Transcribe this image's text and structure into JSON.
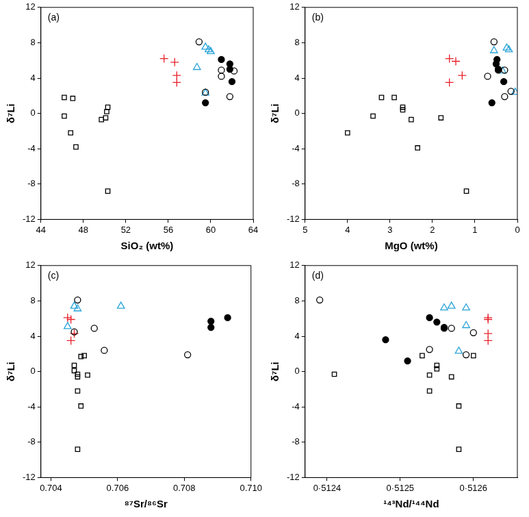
{
  "chart_data": [
    {
      "type": "scatter",
      "annotation": "(a)",
      "x_label": "SiO₂ (wt%)",
      "y_label": "δ⁷Li",
      "xlim": [
        44,
        64
      ],
      "xticks": [
        44,
        48,
        52,
        56,
        60,
        64
      ],
      "ylim": [
        -12,
        12
      ],
      "yticks": [
        -12,
        -8,
        -4,
        0,
        4,
        8,
        12
      ],
      "grid": false,
      "series": [
        {
          "color": "#000000",
          "marker": "open_square",
          "x": [
            46.2,
            46.2,
            46.8,
            47.0,
            47.3,
            50.3,
            50.2,
            50.1,
            49.7,
            50.3
          ],
          "values": [
            1.8,
            -0.3,
            -2.2,
            1.7,
            -3.8,
            0.7,
            0.2,
            -0.5,
            -0.7,
            -8.8
          ]
        },
        {
          "color": "#000000",
          "marker": "filled_circle",
          "x": [
            61.0,
            61.8,
            61.8,
            62.0,
            59.5
          ],
          "values": [
            6.1,
            5.6,
            5.0,
            3.6,
            1.2
          ]
        },
        {
          "color": "#000000",
          "marker": "open_circle",
          "x": [
            58.9,
            61.0,
            61.0,
            62.2,
            61.8,
            59.5
          ],
          "values": [
            8.1,
            4.9,
            4.2,
            4.8,
            1.9,
            2.4
          ]
        },
        {
          "color": "#e8202a",
          "marker": "plus",
          "x": [
            55.6,
            56.6,
            56.8,
            56.8
          ],
          "values": [
            6.2,
            5.8,
            4.3,
            3.5
          ]
        },
        {
          "color": "#29a3d6",
          "marker": "open_triangle",
          "x": [
            59.5,
            59.8,
            60.0,
            58.7,
            59.5
          ],
          "values": [
            7.5,
            7.2,
            7.0,
            5.2,
            2.3
          ]
        }
      ]
    },
    {
      "type": "scatter",
      "annotation": "(b)",
      "x_label": "MgO (wt%)",
      "y_label": "δ⁷Li",
      "xlim": [
        5,
        0
      ],
      "xticks": [
        5,
        4,
        3,
        2,
        1,
        0
      ],
      "ylim": [
        -12,
        12
      ],
      "yticks": [
        -12,
        -8,
        -4,
        0,
        4,
        8,
        12
      ],
      "grid": false,
      "series": [
        {
          "color": "#000000",
          "marker": "open_square",
          "x": [
            3.2,
            2.9,
            3.4,
            2.7,
            2.7,
            2.5,
            1.8,
            4.0,
            2.35,
            1.2
          ],
          "values": [
            1.8,
            1.8,
            -0.3,
            0.7,
            0.4,
            -0.7,
            -0.5,
            -2.2,
            -3.9,
            -8.8
          ]
        },
        {
          "color": "#000000",
          "marker": "filled_circle",
          "x": [
            0.48,
            0.5,
            0.45,
            0.32,
            0.6
          ],
          "values": [
            6.1,
            5.6,
            5.0,
            3.6,
            1.2
          ]
        },
        {
          "color": "#000000",
          "marker": "open_circle",
          "x": [
            0.55,
            0.45,
            0.7,
            0.3,
            0.3,
            0.15
          ],
          "values": [
            8.1,
            4.9,
            4.2,
            4.9,
            1.9,
            2.5
          ]
        },
        {
          "color": "#e8202a",
          "marker": "plus",
          "x": [
            1.6,
            1.45,
            1.3,
            1.6
          ],
          "values": [
            6.2,
            5.9,
            4.3,
            3.5
          ]
        },
        {
          "color": "#29a3d6",
          "marker": "open_triangle",
          "x": [
            0.55,
            0.25,
            0.2,
            0.35,
            0.05
          ],
          "values": [
            7.1,
            7.4,
            7.2,
            4.8,
            2.4
          ]
        }
      ]
    },
    {
      "type": "scatter",
      "annotation": "(c)",
      "x_label": "⁸⁷Sr/⁸⁶Sr",
      "y_label": "δ⁷Li",
      "xlim": [
        0.7037,
        0.71
      ],
      "xticks": [
        {
          "value": 0.704,
          "label": "0.704"
        },
        {
          "value": 0.706,
          "label": "0.706"
        },
        {
          "value": 0.708,
          "label": "0.708"
        },
        {
          "value": 0.71,
          "label": "0.710"
        }
      ],
      "ylim": [
        -12,
        12
      ],
      "yticks": [
        -12,
        -8,
        -4,
        0,
        4,
        8,
        12
      ],
      "grid": false,
      "series": [
        {
          "color": "#000000",
          "marker": "open_square",
          "x": [
            0.7047,
            0.7047,
            0.7048,
            0.7048,
            0.7048,
            0.7049,
            0.7048,
            0.7049,
            0.705,
            0.7051
          ],
          "values": [
            0.7,
            0.1,
            -0.3,
            -0.6,
            -2.2,
            -3.9,
            -8.8,
            1.7,
            1.8,
            -0.4
          ]
        },
        {
          "color": "#000000",
          "marker": "filled_circle",
          "x": [
            0.7088,
            0.7088,
            0.7093
          ],
          "values": [
            5.7,
            5.0,
            6.1
          ]
        },
        {
          "color": "#000000",
          "marker": "open_circle",
          "x": [
            0.7048,
            0.7047,
            0.7053,
            0.7056,
            0.7081
          ],
          "values": [
            8.1,
            4.5,
            4.9,
            2.4,
            1.9
          ]
        },
        {
          "color": "#e8202a",
          "marker": "plus",
          "x": [
            0.7045,
            0.7046,
            0.7047,
            0.7046
          ],
          "values": [
            6.1,
            5.9,
            4.3,
            3.5
          ]
        },
        {
          "color": "#29a3d6",
          "marker": "open_triangle",
          "x": [
            0.7047,
            0.7048,
            0.7061,
            0.7045
          ],
          "values": [
            7.4,
            7.1,
            7.4,
            5.1
          ]
        }
      ]
    },
    {
      "type": "scatter",
      "annotation": "(d)",
      "x_label": "¹⁴³Nd/¹⁴⁴Nd",
      "y_label": "δ⁷Li",
      "xlim": [
        0.51237,
        0.51266
      ],
      "xticks": [
        {
          "value": 0.5124,
          "label": "0·5124"
        },
        {
          "value": 0.5125,
          "label": "0·5125"
        },
        {
          "value": 0.5126,
          "label": "0·5126"
        }
      ],
      "ylim": [
        -12,
        12
      ],
      "yticks": [
        -12,
        -8,
        -4,
        0,
        4,
        8,
        12
      ],
      "grid": false,
      "series": [
        {
          "color": "#000000",
          "marker": "open_square",
          "x": [
            0.51241,
            0.51253,
            0.51255,
            0.51255,
            0.51254,
            0.51254,
            0.51257,
            0.51258,
            0.51258,
            0.5126
          ],
          "values": [
            -0.3,
            1.8,
            0.7,
            0.3,
            -0.4,
            -2.2,
            -0.6,
            -3.9,
            -8.8,
            1.8
          ]
        },
        {
          "color": "#000000",
          "marker": "filled_circle",
          "x": [
            0.51254,
            0.51255,
            0.51256,
            0.51248,
            0.51251
          ],
          "values": [
            6.1,
            5.6,
            5.0,
            3.6,
            1.2
          ]
        },
        {
          "color": "#000000",
          "marker": "open_circle",
          "x": [
            0.51239,
            0.51256,
            0.51257,
            0.5126,
            0.51259,
            0.51254
          ],
          "values": [
            8.1,
            4.9,
            4.9,
            4.4,
            1.9,
            2.5
          ]
        },
        {
          "color": "#e8202a",
          "marker": "plus",
          "x": [
            0.51262,
            0.51262,
            0.51262,
            0.51262
          ],
          "values": [
            6.1,
            5.9,
            4.3,
            3.5
          ]
        },
        {
          "color": "#29a3d6",
          "marker": "open_triangle",
          "x": [
            0.51256,
            0.51257,
            0.51259,
            0.51259,
            0.51258
          ],
          "values": [
            7.2,
            7.4,
            7.2,
            5.2,
            2.3
          ]
        }
      ]
    }
  ]
}
